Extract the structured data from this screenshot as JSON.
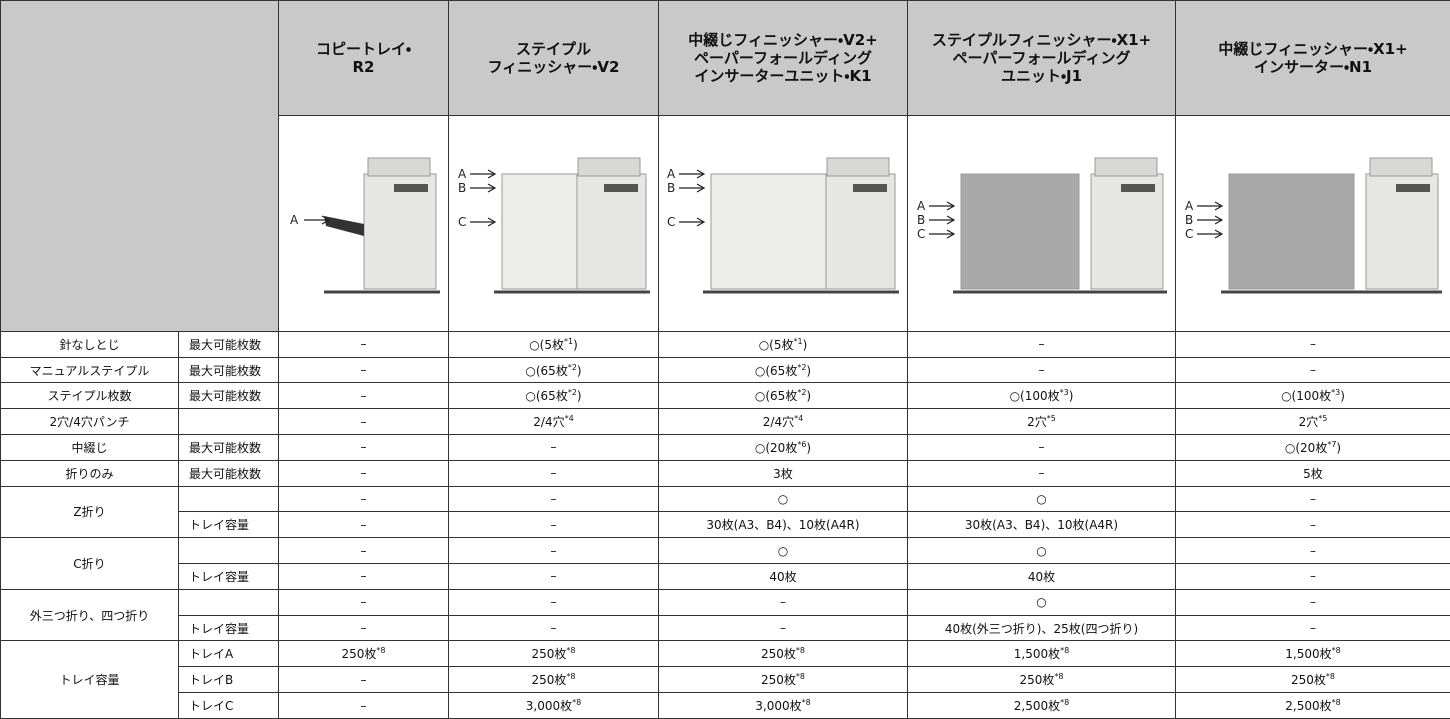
{
  "header": {
    "products": [
      [
        "コピートレイ・",
        "R2"
      ],
      [
        "ステイプル",
        "フィニッシャー・V2"
      ],
      [
        "中綴じフィニッシャー・V2+",
        "ペーパーフォールディング",
        "インサーターユニット・K1"
      ],
      [
        "ステイプルフィニッシャー・X1+",
        "ペーパーフォールディング",
        "ユニット・J1"
      ],
      [
        "中綴じフィニッシャー・X1+",
        "インサーター・N1"
      ]
    ]
  },
  "images": [
    {
      "labels": [
        "A"
      ]
    },
    {
      "labels": [
        "A",
        "B",
        "C"
      ]
    },
    {
      "labels": [
        "A",
        "B",
        "C"
      ]
    },
    {
      "labels": [
        "A",
        "B",
        "C"
      ]
    },
    {
      "labels": [
        "A",
        "B",
        "C"
      ]
    }
  ],
  "groups": [
    {
      "label": "針なしとじ",
      "rows": [
        {
          "sub": "最大可能枚数",
          "cells": [
            "–",
            {
              "text": "○(5枚",
              "note": "*1",
              "end": ")"
            },
            {
              "text": "○(5枚",
              "note": "*1",
              "end": ")"
            },
            "–",
            "–"
          ]
        }
      ]
    },
    {
      "label": "マニュアルステイプル",
      "rows": [
        {
          "sub": "最大可能枚数",
          "cells": [
            "–",
            {
              "text": "○(65枚",
              "note": "*2",
              "end": ")"
            },
            {
              "text": "○(65枚",
              "note": "*2",
              "end": ")"
            },
            "–",
            "–"
          ]
        }
      ]
    },
    {
      "label": "ステイプル枚数",
      "rows": [
        {
          "sub": "最大可能枚数",
          "cells": [
            "–",
            {
              "text": "○(65枚",
              "note": "*2",
              "end": ")"
            },
            {
              "text": "○(65枚",
              "note": "*2",
              "end": ")"
            },
            {
              "text": "○(100枚",
              "note": "*3",
              "end": ")"
            },
            {
              "text": "○(100枚",
              "note": "*3",
              "end": ")"
            }
          ]
        }
      ]
    },
    {
      "label": "2穴/4穴パンチ",
      "rows": [
        {
          "cells": [
            "–",
            {
              "text": "2/4穴",
              "note": "*4"
            },
            {
              "text": "2/4穴",
              "note": "*4"
            },
            {
              "text": "2穴",
              "note": "*5"
            },
            {
              "text": "2穴",
              "note": "*5"
            }
          ]
        }
      ]
    },
    {
      "label": "中綴じ",
      "rows": [
        {
          "sub": "最大可能枚数",
          "cells": [
            "–",
            "–",
            {
              "text": "○(20枚",
              "note": "*6",
              "end": ")"
            },
            "–",
            {
              "text": "○(20枚",
              "note": "*7",
              "end": ")"
            }
          ]
        }
      ]
    },
    {
      "label": "折りのみ",
      "rows": [
        {
          "sub": "最大可能枚数",
          "cells": [
            "–",
            "–",
            "3枚",
            "–",
            "5枚"
          ]
        }
      ]
    },
    {
      "label": "Z折り",
      "rows": [
        {
          "cells": [
            "–",
            "–",
            "○",
            "○",
            "–"
          ]
        },
        {
          "sub": "トレイ容量",
          "cells": [
            "–",
            "–",
            "30枚(A3、B4)、10枚(A4R)",
            "30枚(A3、B4)、10枚(A4R)",
            "–"
          ]
        }
      ]
    },
    {
      "label": "C折り",
      "rows": [
        {
          "cells": [
            "–",
            "–",
            "○",
            "○",
            "–"
          ]
        },
        {
          "sub": "トレイ容量",
          "cells": [
            "–",
            "–",
            "40枚",
            "40枚",
            "–"
          ]
        }
      ]
    },
    {
      "label": "外三つ折り、四つ折り",
      "rows": [
        {
          "cells": [
            "–",
            "–",
            "–",
            "○",
            "–"
          ]
        },
        {
          "sub": "トレイ容量",
          "cells": [
            "–",
            "–",
            "–",
            "40枚(外三つ折り)、25枚(四つ折り)",
            "–"
          ]
        }
      ]
    },
    {
      "label": "トレイ容量",
      "rows": [
        {
          "sub": "トレイA",
          "cells": [
            {
              "text": "250枚",
              "note": "*8"
            },
            {
              "text": "250枚",
              "note": "*8"
            },
            {
              "text": "250枚",
              "note": "*8"
            },
            {
              "text": "1,500枚",
              "note": "*8"
            },
            {
              "text": "1,500枚",
              "note": "*8"
            }
          ]
        },
        {
          "sub": "トレイB",
          "cells": [
            "–",
            {
              "text": "250枚",
              "note": "*8"
            },
            {
              "text": "250枚",
              "note": "*8"
            },
            {
              "text": "250枚",
              "note": "*8"
            },
            {
              "text": "250枚",
              "note": "*8"
            }
          ]
        },
        {
          "sub": "トレイC",
          "cells": [
            "–",
            {
              "text": "3,000枚",
              "note": "*8"
            },
            {
              "text": "3,000枚",
              "note": "*8"
            },
            {
              "text": "2,500枚",
              "note": "*8"
            },
            {
              "text": "2,500枚",
              "note": "*8"
            }
          ]
        }
      ]
    }
  ]
}
